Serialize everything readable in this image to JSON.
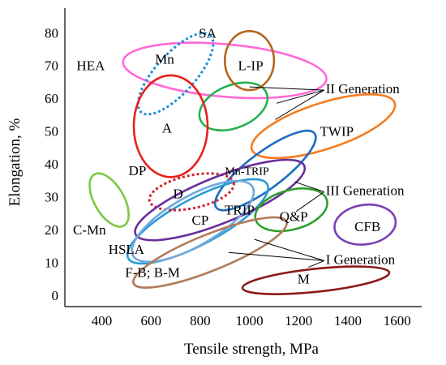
{
  "chart_data": {
    "type": "scatter",
    "xlabel": "Tensile strength, MPa",
    "ylabel": "Elongation, %",
    "xlim": [
      250,
      1700
    ],
    "ylim": [
      -3,
      88
    ],
    "x_ticks": [
      400,
      600,
      800,
      1000,
      1200,
      1400,
      1600
    ],
    "y_ticks": [
      0,
      10,
      20,
      30,
      40,
      50,
      60,
      70,
      80
    ],
    "grid": false,
    "regions": [
      {
        "name": "HEA",
        "shape": "ellipse",
        "color": "#ff69d8",
        "dashed": false,
        "cx": 900,
        "cy": 69,
        "rx": 415,
        "ry": 8,
        "angle": 5,
        "label": "HEA",
        "label_at": [
          355,
          70
        ]
      },
      {
        "name": "Mn",
        "shape": "ellipse",
        "color": "#1e90d6",
        "dashed": true,
        "cx": 700,
        "cy": 68,
        "rx": 210,
        "ry": 6,
        "angle": -48,
        "label": "Mn",
        "label_at": [
          655,
          72
        ]
      },
      {
        "name": "SA",
        "shape": "ellipse",
        "color": "#22b14c",
        "dashed": false,
        "cx": 935,
        "cy": 58,
        "rx": 145,
        "ry": 6.5,
        "angle": -22,
        "label": "SA",
        "label_at": [
          830,
          80
        ]
      },
      {
        "name": "L-IP",
        "shape": "ellipse",
        "color": "#b5651d",
        "dashed": false,
        "cx": 1000,
        "cy": 72,
        "rx": 100,
        "ry": 9,
        "angle": 0,
        "label": "L-IP",
        "label_at": [
          1005,
          70
        ]
      },
      {
        "name": "A",
        "shape": "ellipse",
        "color": "#e8201c",
        "dashed": false,
        "cx": 680,
        "cy": 52,
        "rx": 150,
        "ry": 15.5,
        "angle": 0,
        "label": "A",
        "label_at": [
          665,
          51
        ]
      },
      {
        "name": "TWIP",
        "shape": "ellipse",
        "color": "#f57c1f",
        "dashed": false,
        "cx": 1300,
        "cy": 52,
        "rx": 305,
        "ry": 7,
        "angle": -18,
        "label": "TWIP",
        "label_at": [
          1355,
          50
        ]
      },
      {
        "name": "Mn-TRIP",
        "shape": "ellipse",
        "color": "#1e6fbf",
        "dashed": false,
        "cx": 1065,
        "cy": 38.5,
        "rx": 250,
        "ry": 5.5,
        "angle": -37,
        "label": "Mn-TRIP",
        "label_at": [
          990,
          38
        ]
      },
      {
        "name": "C-Mn",
        "shape": "ellipse",
        "color": "#7ac943",
        "dashed": false,
        "cx": 430,
        "cy": 29.5,
        "rx": 120,
        "ry": 4.5,
        "angle": 60,
        "label": "C-Mn",
        "label_at": [
          350,
          20
        ]
      },
      {
        "name": "DP",
        "shape": "ellipse",
        "color": "#2a9bd6",
        "dashed": false,
        "cx": 790,
        "cy": 23,
        "rx": 320,
        "ry": 7,
        "angle": -28,
        "label": "DP",
        "label_at": [
          545,
          38
        ]
      },
      {
        "name": "D",
        "shape": "ellipse",
        "color": "#d0242b",
        "dashed": true,
        "cx": 765,
        "cy": 32,
        "rx": 175,
        "ry": 5,
        "angle": -12,
        "label": "D",
        "label_at": [
          710,
          31
        ]
      },
      {
        "name": "TRIP",
        "shape": "ellipse",
        "color": "#6a2e9a",
        "dashed": false,
        "cx": 880,
        "cy": 29.5,
        "rx": 370,
        "ry": 7,
        "angle": -22,
        "label": "TRIP",
        "label_at": [
          960,
          26
        ]
      },
      {
        "name": "CP",
        "shape": "ellipse",
        "color": "#6fa8dc",
        "dashed": false,
        "cx": 770,
        "cy": 23,
        "rx": 280,
        "ry": 7.5,
        "angle": -30,
        "label": "CP",
        "label_at": [
          800,
          23
        ]
      },
      {
        "name": "Q&P",
        "shape": "ellipse",
        "color": "#2ca02c",
        "dashed": false,
        "cx": 1170,
        "cy": 26.5,
        "rx": 150,
        "ry": 6,
        "angle": -15,
        "label": "Q&P",
        "label_at": [
          1180,
          24
        ]
      },
      {
        "name": "CFB",
        "shape": "ellipse",
        "color": "#7b3fb3",
        "dashed": false,
        "cx": 1470,
        "cy": 22,
        "rx": 125,
        "ry": 6,
        "angle": -8,
        "label": "CFB",
        "label_at": [
          1480,
          21
        ]
      },
      {
        "name": "HSLA",
        "shape": "ellipse",
        "color": "#b27b59",
        "dashed": false,
        "cx": 840,
        "cy": 13.5,
        "rx": 335,
        "ry": 5.5,
        "angle": -22,
        "label": "HSLA",
        "label_at": [
          500,
          14
        ]
      },
      {
        "name": "M",
        "shape": "ellipse",
        "color": "#8b1a1a",
        "dashed": false,
        "cx": 1270,
        "cy": 5,
        "rx": 300,
        "ry": 3.5,
        "angle": -6,
        "label": "M",
        "label_at": [
          1220,
          5
        ]
      }
    ],
    "annotations": [
      {
        "text": "II Generation",
        "at": [
          1310,
          63
        ],
        "targets": [
          [
            1000,
            64
          ],
          [
            1105,
            54
          ],
          [
            1110,
            59
          ]
        ]
      },
      {
        "text": "III Generation",
        "at": [
          1310,
          32
        ],
        "targets": [
          [
            1185,
            35
          ],
          [
            1190,
            26
          ]
        ]
      },
      {
        "text": "I Generation",
        "at": [
          1310,
          11
        ],
        "targets": [
          [
            915,
            13.5
          ],
          [
            1020,
            17.5
          ],
          [
            1240,
            9
          ]
        ]
      },
      {
        "text": "F-B; B-M",
        "at": [
          495,
          7
        ],
        "targets": []
      }
    ]
  }
}
